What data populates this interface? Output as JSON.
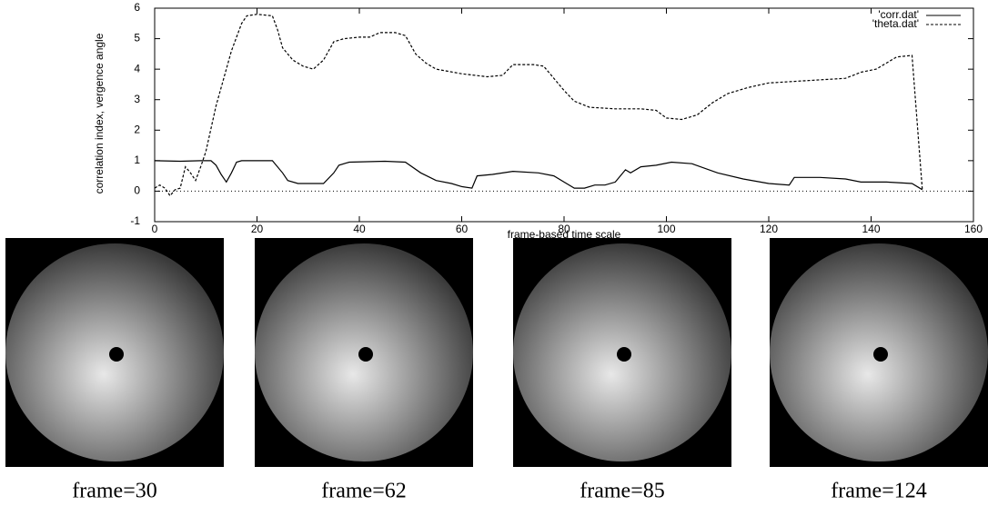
{
  "chart_data": {
    "type": "line",
    "ylabel": "correlation index, vergence angle",
    "xlabel": "frame-based time scale",
    "xlim": [
      0,
      160
    ],
    "xticks": [
      0,
      20,
      40,
      60,
      80,
      100,
      120,
      140,
      160
    ],
    "ylim": [
      -1,
      6
    ],
    "yticks": [
      -1,
      0,
      1,
      2,
      3,
      4,
      5,
      6
    ],
    "zero_line": true,
    "legend": "top-right",
    "series": [
      {
        "name": "'corr.dat'",
        "color": "#000000",
        "line_style": "solid",
        "x": [
          0,
          5,
          9,
          11,
          12,
          13,
          14,
          15,
          16,
          17,
          23,
          25,
          26,
          28,
          33,
          35,
          36,
          38,
          45,
          49,
          52,
          55,
          58,
          60,
          62,
          63,
          66,
          70,
          75,
          78,
          80,
          82,
          84,
          86,
          88,
          90,
          92,
          93,
          95,
          98,
          101,
          105,
          110,
          115,
          120,
          124,
          125,
          130,
          135,
          138,
          143,
          148,
          150
        ],
        "values": [
          1.0,
          0.98,
          1.0,
          1.0,
          0.85,
          0.55,
          0.3,
          0.6,
          0.95,
          1.0,
          1.0,
          0.6,
          0.35,
          0.25,
          0.25,
          0.6,
          0.85,
          0.95,
          0.98,
          0.95,
          0.6,
          0.35,
          0.25,
          0.15,
          0.1,
          0.5,
          0.55,
          0.65,
          0.6,
          0.5,
          0.3,
          0.1,
          0.1,
          0.2,
          0.2,
          0.3,
          0.7,
          0.6,
          0.8,
          0.85,
          0.95,
          0.9,
          0.6,
          0.4,
          0.25,
          0.2,
          0.45,
          0.45,
          0.4,
          0.3,
          0.3,
          0.25,
          0.05
        ]
      },
      {
        "name": "'theta.dat'",
        "color": "#000000",
        "line_style": "dashed",
        "x": [
          0,
          1,
          2,
          3,
          4,
          5,
          6,
          7,
          8,
          9,
          10,
          12,
          15,
          17,
          18,
          20,
          23,
          24,
          25,
          27,
          29,
          31,
          33,
          35,
          37,
          40,
          42,
          44,
          47,
          49,
          51,
          53,
          55,
          60,
          65,
          68,
          70,
          74,
          76,
          78,
          80,
          82,
          85,
          90,
          95,
          98,
          100,
          103,
          106,
          109,
          112,
          116,
          120,
          125,
          130,
          135,
          138,
          141,
          143,
          145,
          148,
          150
        ],
        "values": [
          0.1,
          0.2,
          0.1,
          -0.15,
          0.05,
          0.1,
          0.8,
          0.6,
          0.35,
          0.8,
          1.3,
          2.8,
          4.6,
          5.5,
          5.75,
          5.8,
          5.75,
          5.3,
          4.7,
          4.3,
          4.1,
          4.0,
          4.3,
          4.9,
          5.0,
          5.05,
          5.05,
          5.2,
          5.2,
          5.1,
          4.5,
          4.2,
          4.0,
          3.85,
          3.75,
          3.8,
          4.15,
          4.15,
          4.1,
          3.7,
          3.3,
          2.95,
          2.75,
          2.7,
          2.7,
          2.65,
          2.4,
          2.35,
          2.5,
          2.9,
          3.2,
          3.4,
          3.55,
          3.6,
          3.65,
          3.7,
          3.9,
          4.0,
          4.2,
          4.4,
          4.45,
          0.05
        ]
      }
    ]
  },
  "figures": [
    {
      "caption": "frame=30"
    },
    {
      "caption": "frame=62"
    },
    {
      "caption": "frame=85"
    },
    {
      "caption": "frame=124"
    }
  ]
}
